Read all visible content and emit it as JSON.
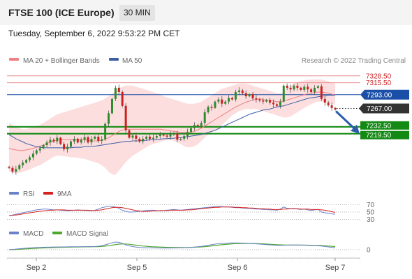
{
  "header": {
    "title": "FTSE 100 (ICE Europe)",
    "interval": "30 MIN",
    "datetime": "Tuesday, September 6, 2022 9:53:22 PM CET"
  },
  "colors": {
    "bollinger_fill": "#fbd3d3",
    "ma20": "#f08080",
    "ma50": "#3a5ea8",
    "candle": "#cc1f1f",
    "candle_bull": "#2e8b2e",
    "resistance": "#e88a8a",
    "pivot": "#1a4fa8",
    "support": "#138a13",
    "current_price": "#333333",
    "rsi": "#6b82c9",
    "rsi_ma": "#d62020",
    "macd": "#6b82c9",
    "macd_signal": "#4fa82e",
    "arrow": "#2a5ca8"
  },
  "chart_data": [
    {
      "type": "candlestick",
      "legend": [
        {
          "label": "MA 20 + Bollinger Bands",
          "color": "#f08080"
        },
        {
          "label": "MA 50",
          "color": "#3a5ea8"
        }
      ],
      "legend_placement": "top-left",
      "watermark": "Research © 2022 Trading Central",
      "x_ticks": [
        "Sep 2",
        "Sep 5",
        "Sep 6",
        "Sep 7"
      ],
      "ylim": [
        7135,
        7340
      ],
      "levels": [
        {
          "label": "7328.50",
          "value": 7328.5,
          "kind": "resistance"
        },
        {
          "label": "7315.50",
          "value": 7315.5,
          "kind": "resistance"
        },
        {
          "label": "7293.00",
          "value": 7293.0,
          "kind": "pivot"
        },
        {
          "label": "7267.00",
          "value": 7267.0,
          "kind": "current"
        },
        {
          "label": "7232.50",
          "value": 7232.5,
          "kind": "support"
        },
        {
          "label": "7219.50",
          "value": 7219.5,
          "kind": "support"
        }
      ],
      "close": [
        7155,
        7148,
        7153,
        7160,
        7165,
        7170,
        7175,
        7182,
        7188,
        7192,
        7198,
        7203,
        7208,
        7205,
        7212,
        7200,
        7190,
        7195,
        7205,
        7210,
        7203,
        7208,
        7213,
        7203,
        7210,
        7214,
        7206,
        7209,
        7238,
        7258,
        7285,
        7306,
        7298,
        7272,
        7226,
        7212,
        7216,
        7210,
        7205,
        7210,
        7214,
        7210,
        7212,
        7215,
        7218,
        7216,
        7214,
        7218,
        7220,
        7208,
        7210,
        7215,
        7223,
        7230,
        7236,
        7234,
        7240,
        7260,
        7270,
        7268,
        7280,
        7284,
        7276,
        7280,
        7287,
        7284,
        7298,
        7301,
        7296,
        7290,
        7294,
        7286,
        7284,
        7282,
        7280,
        7283,
        7278,
        7275,
        7272,
        7280,
        7310,
        7306,
        7303,
        7310,
        7306,
        7302,
        7308,
        7303,
        7298,
        7306,
        7309,
        7285,
        7278,
        7273,
        7268,
        7265
      ],
      "bollinger_upper": [
        7240,
        7236,
        7232,
        7230,
        7228,
        7228,
        7230,
        7232,
        7234,
        7236,
        7240,
        7244,
        7248,
        7252,
        7256,
        7258,
        7260,
        7262,
        7264,
        7266,
        7268,
        7270,
        7272,
        7274,
        7276,
        7278,
        7280,
        7282,
        7286,
        7290,
        7295,
        7300,
        7305,
        7308,
        7310,
        7310,
        7310,
        7308,
        7306,
        7304,
        7302,
        7300,
        7298,
        7296,
        7294,
        7290,
        7288,
        7286,
        7284,
        7282,
        7280,
        7278,
        7276,
        7276,
        7276,
        7278,
        7280,
        7284,
        7288,
        7292,
        7296,
        7300,
        7304,
        7306,
        7308,
        7310,
        7312,
        7314,
        7314,
        7314,
        7312,
        7310,
        7308,
        7306,
        7304,
        7302,
        7300,
        7298,
        7296,
        7296,
        7298,
        7305,
        7310,
        7314,
        7316,
        7318,
        7320,
        7321,
        7322,
        7322,
        7322,
        7322,
        7320,
        7318,
        7316,
        7314
      ],
      "bollinger_lower": [
        7148,
        7146,
        7145,
        7146,
        7148,
        7150,
        7152,
        7155,
        7158,
        7160,
        7164,
        7168,
        7172,
        7176,
        7178,
        7178,
        7177,
        7176,
        7175,
        7175,
        7174,
        7173,
        7172,
        7170,
        7168,
        7166,
        7164,
        7160,
        7155,
        7148,
        7143,
        7142,
        7150,
        7158,
        7166,
        7172,
        7178,
        7182,
        7186,
        7190,
        7194,
        7198,
        7200,
        7202,
        7204,
        7206,
        7208,
        7208,
        7206,
        7204,
        7200,
        7196,
        7194,
        7194,
        7196,
        7200,
        7206,
        7212,
        7218,
        7222,
        7226,
        7230,
        7236,
        7242,
        7248,
        7254,
        7258,
        7262,
        7264,
        7266,
        7266,
        7266,
        7266,
        7264,
        7262,
        7260,
        7258,
        7256,
        7254,
        7252,
        7250,
        7250,
        7252,
        7256,
        7260,
        7264,
        7268,
        7272,
        7275,
        7278,
        7280,
        7280,
        7280,
        7278,
        7276,
        7274
      ],
      "ma20": [
        7192,
        7190,
        7189,
        7188,
        7188,
        7189,
        7190,
        7192,
        7194,
        7196,
        7198,
        7201,
        7204,
        7206,
        7208,
        7208,
        7208,
        7208,
        7208,
        7208,
        7208,
        7208,
        7208,
        7207,
        7206,
        7206,
        7206,
        7207,
        7209,
        7212,
        7216,
        7220,
        7224,
        7226,
        7228,
        7228,
        7228,
        7228,
        7228,
        7228,
        7228,
        7228,
        7228,
        7228,
        7228,
        7227,
        7226,
        7225,
        7224,
        7223,
        7222,
        7222,
        7222,
        7222,
        7224,
        7227,
        7230,
        7234,
        7238,
        7242,
        7246,
        7250,
        7254,
        7258,
        7262,
        7266,
        7270,
        7273,
        7276,
        7279,
        7281,
        7283,
        7284,
        7285,
        7284,
        7283,
        7282,
        7281,
        7280,
        7280,
        7281,
        7283,
        7285,
        7287,
        7289,
        7291,
        7293,
        7295,
        7296,
        7297,
        7298,
        7298,
        7297,
        7296,
        7294,
        7292
      ],
      "ma50": [
        7218,
        7214,
        7210,
        7207,
        7204,
        7201,
        7199,
        7197,
        7195,
        7194,
        7193,
        7193,
        7193,
        7193,
        7193,
        7193,
        7193,
        7193,
        7193,
        7194,
        7194,
        7194,
        7195,
        7195,
        7196,
        7196,
        7197,
        7198,
        7199,
        7200,
        7201,
        7202,
        7203,
        7204,
        7205,
        7205,
        7206,
        7206,
        7206,
        7207,
        7207,
        7208,
        7208,
        7209,
        7209,
        7210,
        7210,
        7211,
        7211,
        7212,
        7212,
        7213,
        7214,
        7215,
        7216,
        7217,
        7218,
        7220,
        7222,
        7224,
        7226,
        7229,
        7232,
        7235,
        7238,
        7241,
        7244,
        7247,
        7250,
        7253,
        7256,
        7258,
        7260,
        7262,
        7264,
        7265,
        7266,
        7268,
        7270,
        7271,
        7272,
        7274,
        7276,
        7278,
        7280,
        7282,
        7284,
        7286,
        7287,
        7288,
        7289,
        7290,
        7291,
        7292,
        7292,
        7292
      ]
    },
    {
      "type": "line",
      "legend": [
        {
          "label": "RSI",
          "color": "#6b82c9"
        },
        {
          "label": "9MA",
          "color": "#d62020"
        }
      ],
      "ylim": [
        25,
        75
      ],
      "y_ticks": [
        {
          "label": "70",
          "value": 70
        },
        {
          "label": "50",
          "value": 50
        },
        {
          "label": "30",
          "value": 30
        }
      ],
      "rsi": [
        40,
        42,
        44,
        46,
        48,
        50,
        52,
        54,
        56,
        57,
        58,
        58,
        57,
        56,
        56,
        55,
        54,
        53,
        54,
        55,
        56,
        55,
        54,
        54,
        53,
        55,
        58,
        62,
        64,
        66,
        66,
        64,
        60,
        55,
        52,
        50,
        50,
        51,
        52,
        53,
        54,
        55,
        55,
        54,
        53,
        54,
        55,
        56,
        57,
        56,
        55,
        56,
        57,
        58,
        59,
        60,
        61,
        62,
        63,
        64,
        65,
        66,
        65,
        64,
        64,
        63,
        62,
        62,
        61,
        60,
        60,
        59,
        58,
        58,
        57,
        57,
        56,
        56,
        55,
        58,
        64,
        60,
        59,
        60,
        58,
        57,
        58,
        56,
        54,
        56,
        57,
        50,
        48,
        46,
        45,
        44
      ],
      "rsi_ma": [
        40,
        41,
        42,
        43,
        45,
        46,
        48,
        49,
        51,
        52,
        53,
        54,
        55,
        55,
        56,
        56,
        56,
        55,
        55,
        55,
        55,
        55,
        55,
        55,
        54,
        54,
        55,
        56,
        58,
        60,
        62,
        63,
        63,
        62,
        60,
        58,
        56,
        54,
        53,
        52,
        52,
        52,
        53,
        53,
        54,
        54,
        54,
        55,
        55,
        55,
        55,
        55,
        56,
        56,
        57,
        58,
        59,
        60,
        61,
        62,
        63,
        63,
        64,
        64,
        64,
        64,
        63,
        63,
        62,
        62,
        61,
        61,
        60,
        59,
        59,
        58,
        58,
        57,
        57,
        57,
        58,
        58,
        59,
        59,
        59,
        58,
        58,
        58,
        57,
        57,
        57,
        56,
        55,
        53,
        51,
        49
      ]
    },
    {
      "type": "line",
      "legend": [
        {
          "label": "MACD",
          "color": "#6b82c9"
        },
        {
          "label": "MACD Signal",
          "color": "#4fa82e"
        }
      ],
      "ylim": [
        -0.6,
        1.6
      ],
      "y_ticks": [
        {
          "label": "0",
          "value": 0
        }
      ],
      "macd": [
        0,
        0.04,
        0.09,
        0.14,
        0.18,
        0.22,
        0.26,
        0.29,
        0.31,
        0.33,
        0.35,
        0.36,
        0.38,
        0.39,
        0.39,
        0.4,
        0.4,
        0.41,
        0.42,
        0.42,
        0.43,
        0.43,
        0.44,
        0.44,
        0.45,
        0.46,
        0.5,
        0.58,
        0.7,
        0.84,
        0.98,
        1.1,
        1.06,
        0.9,
        0.7,
        0.55,
        0.45,
        0.38,
        0.33,
        0.3,
        0.28,
        0.27,
        0.26,
        0.25,
        0.24,
        0.24,
        0.24,
        0.24,
        0.25,
        0.26,
        0.27,
        0.29,
        0.31,
        0.34,
        0.38,
        0.42,
        0.48,
        0.56,
        0.64,
        0.72,
        0.8,
        0.86,
        0.9,
        0.93,
        0.95,
        0.97,
        0.97,
        0.96,
        0.95,
        0.93,
        0.9,
        0.87,
        0.84,
        0.8,
        0.76,
        0.72,
        0.69,
        0.66,
        0.63,
        0.62,
        0.64,
        0.66,
        0.68,
        0.68,
        0.67,
        0.66,
        0.65,
        0.63,
        0.61,
        0.6,
        0.58,
        0.52,
        0.46,
        0.4,
        0.34,
        0.29
      ],
      "macd_signal": [
        0,
        0.01,
        0.03,
        0.06,
        0.09,
        0.12,
        0.15,
        0.18,
        0.2,
        0.23,
        0.25,
        0.27,
        0.29,
        0.31,
        0.32,
        0.34,
        0.35,
        0.36,
        0.37,
        0.38,
        0.39,
        0.4,
        0.41,
        0.41,
        0.42,
        0.43,
        0.44,
        0.47,
        0.51,
        0.57,
        0.65,
        0.73,
        0.8,
        0.83,
        0.82,
        0.78,
        0.72,
        0.65,
        0.59,
        0.53,
        0.49,
        0.45,
        0.42,
        0.4,
        0.38,
        0.36,
        0.34,
        0.33,
        0.32,
        0.31,
        0.31,
        0.31,
        0.32,
        0.33,
        0.35,
        0.37,
        0.4,
        0.44,
        0.49,
        0.54,
        0.6,
        0.66,
        0.71,
        0.76,
        0.8,
        0.84,
        0.87,
        0.89,
        0.9,
        0.91,
        0.9,
        0.89,
        0.88,
        0.86,
        0.84,
        0.81,
        0.78,
        0.75,
        0.72,
        0.7,
        0.68,
        0.67,
        0.67,
        0.67,
        0.67,
        0.66,
        0.66,
        0.65,
        0.64,
        0.63,
        0.62,
        0.6,
        0.57,
        0.53,
        0.49,
        0.45
      ]
    }
  ]
}
